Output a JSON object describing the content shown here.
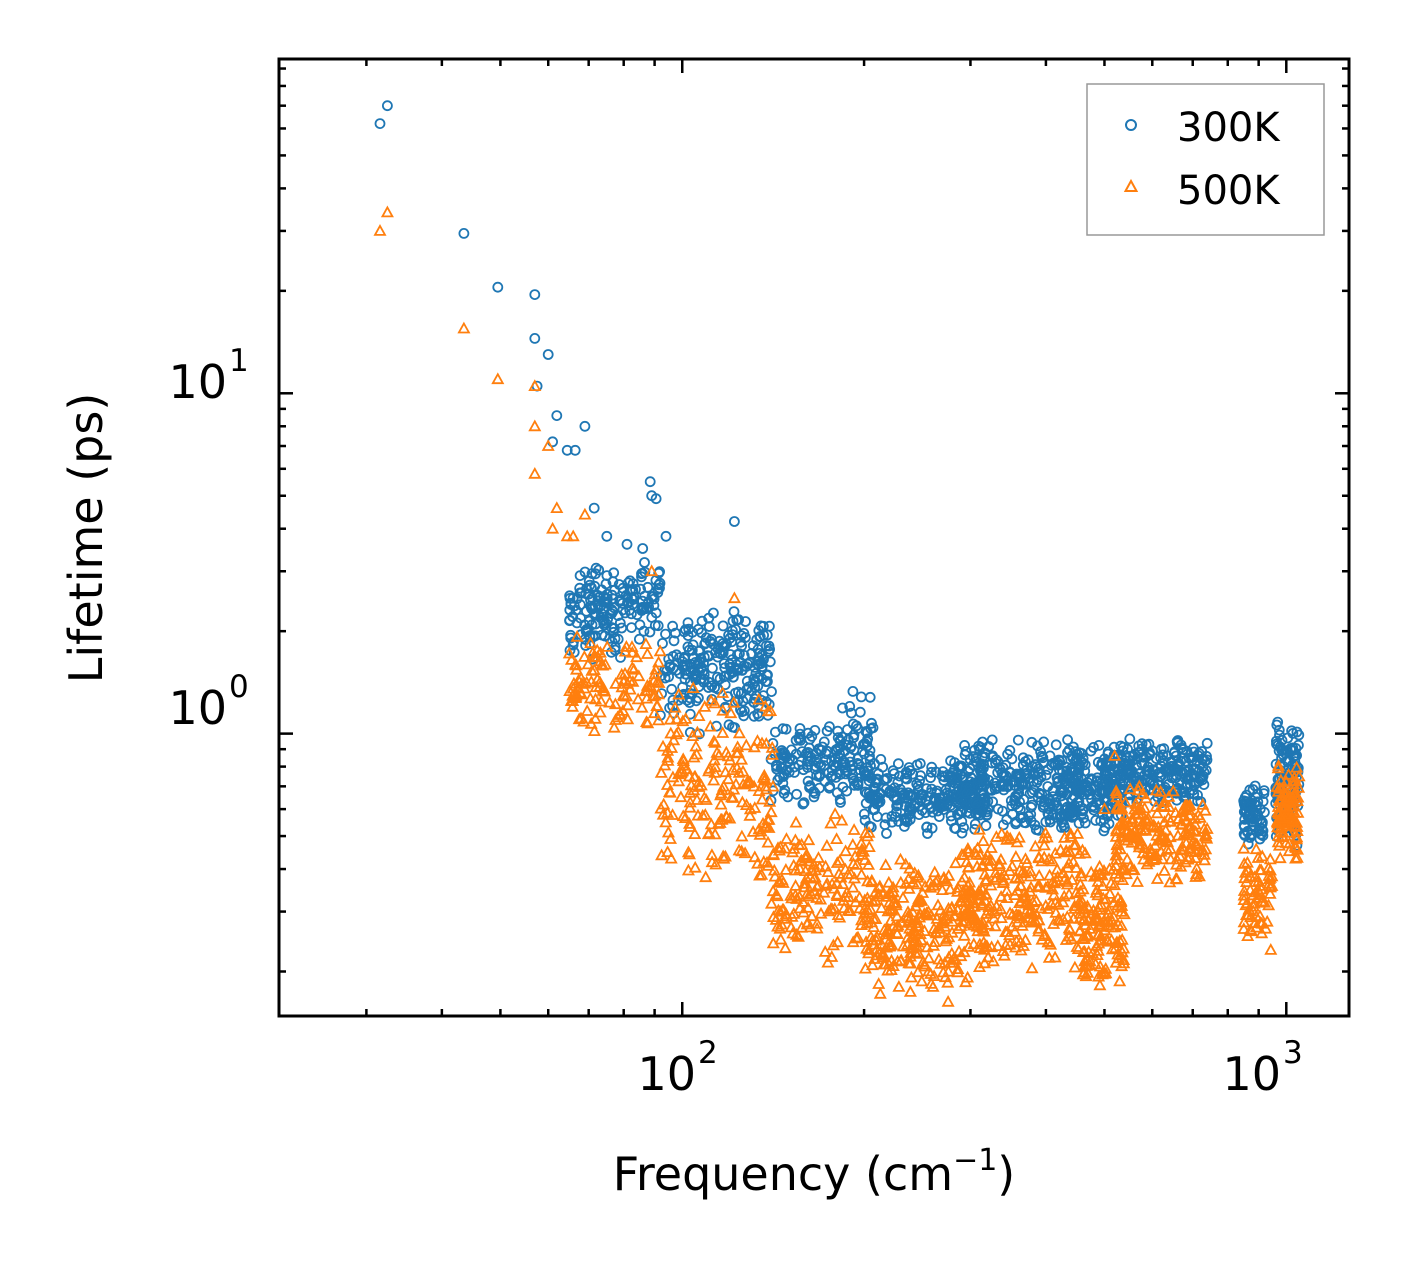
{
  "chart_data": {
    "type": "scatter",
    "xscale": "log",
    "yscale": "log",
    "xlim": [
      21.5,
      1270
    ],
    "ylim": [
      0.148,
      96
    ],
    "xlabel": "Frequency (cm",
    "xlabel_sup": "−1",
    "xlabel_tail": ")",
    "ylabel": "Lifetime (ps)",
    "xticks": [
      {
        "base": "10",
        "exp": "2",
        "value": 100
      },
      {
        "base": "10",
        "exp": "3",
        "value": 1000
      }
    ],
    "yticks": [
      {
        "base": "10",
        "exp": "0",
        "value": 1
      },
      {
        "base": "10",
        "exp": "1",
        "value": 10
      }
    ],
    "legend_position": "top-right",
    "series": [
      {
        "name": "300K",
        "marker": "circle",
        "color": "#1f77b4",
        "points": [
          [
            31.6,
            62
          ],
          [
            32.5,
            70
          ],
          [
            43.5,
            29.5
          ],
          [
            49.5,
            20.5
          ],
          [
            57,
            19.5
          ],
          [
            57,
            14.5
          ],
          [
            57.5,
            10.5
          ],
          [
            60,
            13
          ],
          [
            62,
            8.6
          ],
          [
            61,
            7.2
          ],
          [
            66.5,
            6.8
          ],
          [
            69,
            8
          ],
          [
            64.5,
            6.8
          ],
          [
            88.5,
            5.5
          ],
          [
            89,
            5.0
          ],
          [
            90.5,
            4.9
          ],
          [
            71.5,
            4.6
          ],
          [
            122,
            4.2
          ],
          [
            75,
            3.8
          ],
          [
            81,
            3.6
          ],
          [
            86,
            3.5
          ],
          [
            94,
            3.8
          ]
        ],
        "bands": [
          {
            "x": [
              65,
              92
            ],
            "y": [
              1.8,
              3.4
            ],
            "n": 120
          },
          {
            "x": [
              65,
              80
            ],
            "y": [
              1.6,
              2.8
            ],
            "n": 60
          },
          {
            "x": [
              92,
              140
            ],
            "y": [
              1.1,
              2.3
            ],
            "n": 140
          },
          {
            "x": [
              100,
              142
            ],
            "y": [
              0.95,
              2.5
            ],
            "n": 110
          },
          {
            "x": [
              140,
              205
            ],
            "y": [
              0.6,
              1.1
            ],
            "n": 160
          },
          {
            "x": [
              170,
              210
            ],
            "y": [
              0.7,
              1.4
            ],
            "n": 30
          },
          {
            "x": [
              200,
              320
            ],
            "y": [
              0.5,
              0.85
            ],
            "n": 260
          },
          {
            "x": [
              290,
              460
            ],
            "y": [
              0.5,
              1.0
            ],
            "n": 280
          },
          {
            "x": [
              420,
              540
            ],
            "y": [
              0.5,
              0.95
            ],
            "n": 150
          },
          {
            "x": [
              500,
              740
            ],
            "y": [
              0.6,
              1.0
            ],
            "n": 240
          },
          {
            "x": [
              850,
              920
            ],
            "y": [
              0.45,
              0.72
            ],
            "n": 70
          },
          {
            "x": [
              960,
              1050
            ],
            "y": [
              0.45,
              1.2
            ],
            "n": 110
          }
        ]
      },
      {
        "name": "500K",
        "marker": "triangle",
        "color": "#ff7f0e",
        "points": [
          [
            31.6,
            30
          ],
          [
            32.5,
            34
          ],
          [
            43.5,
            15.5
          ],
          [
            49.5,
            11
          ],
          [
            57,
            10.5
          ],
          [
            57,
            8
          ],
          [
            60,
            7
          ],
          [
            57,
            5.8
          ],
          [
            62,
            4.6
          ],
          [
            61,
            4.0
          ],
          [
            66,
            3.8
          ],
          [
            69,
            4.4
          ],
          [
            64.5,
            3.8
          ],
          [
            89,
            3.0
          ],
          [
            122,
            2.5
          ],
          [
            520,
            0.86
          ],
          [
            500,
            0.6
          ]
        ],
        "bands": [
          {
            "x": [
              65,
              92
            ],
            "y": [
              0.95,
              2.0
            ],
            "n": 120
          },
          {
            "x": [
              92,
              142
            ],
            "y": [
              0.35,
              1.4
            ],
            "n": 190
          },
          {
            "x": [
              140,
              205
            ],
            "y": [
              0.21,
              0.6
            ],
            "n": 170
          },
          {
            "x": [
              200,
              320
            ],
            "y": [
              0.16,
              0.45
            ],
            "n": 280
          },
          {
            "x": [
              290,
              460
            ],
            "y": [
              0.2,
              0.55
            ],
            "n": 260
          },
          {
            "x": [
              460,
              540
            ],
            "y": [
              0.17,
              0.45
            ],
            "n": 130
          },
          {
            "x": [
              520,
              740
            ],
            "y": [
              0.35,
              0.72
            ],
            "n": 210
          },
          {
            "x": [
              850,
              950
            ],
            "y": [
              0.22,
              0.5
            ],
            "n": 70
          },
          {
            "x": [
              960,
              1050
            ],
            "y": [
              0.4,
              0.85
            ],
            "n": 100
          }
        ]
      }
    ]
  }
}
